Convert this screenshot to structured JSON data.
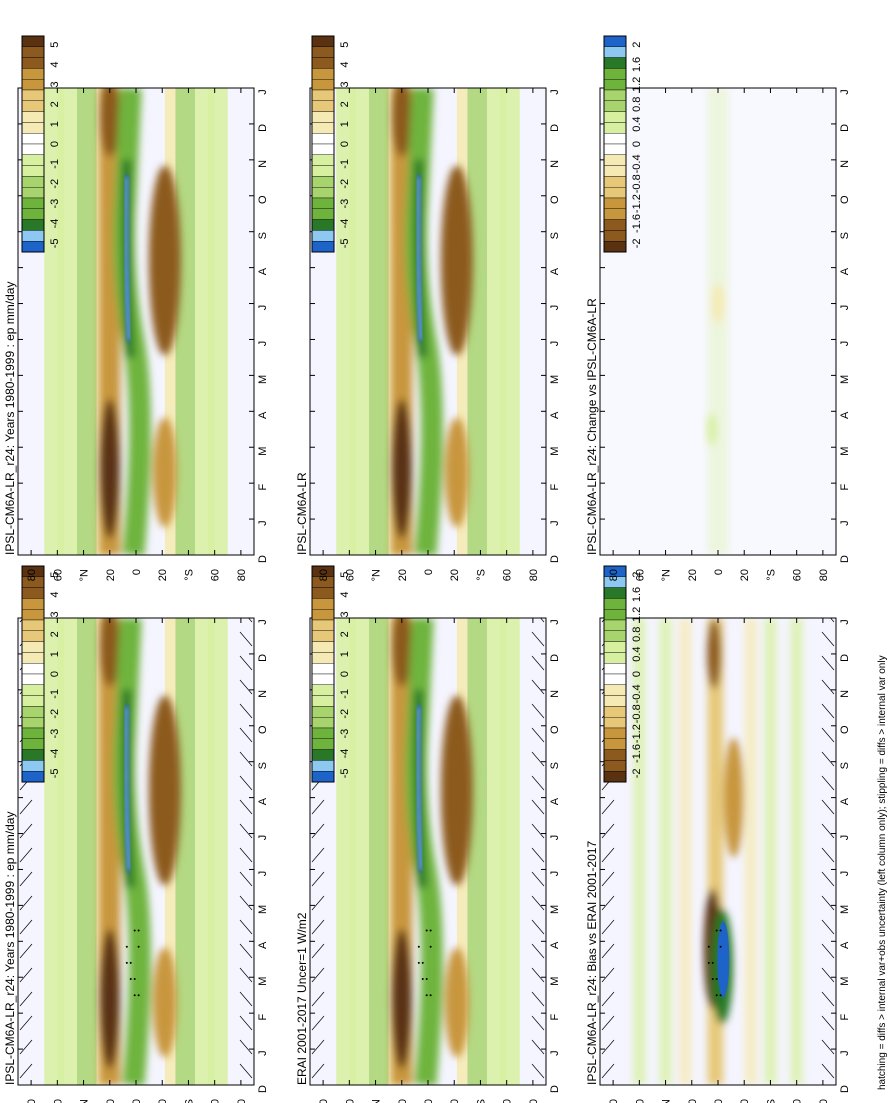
{
  "chart_data": [
    {
      "type": "heatmap",
      "title": "IPSL-CM6A-LR_r24: Years 1980-1999 : ep mm/day",
      "x_ticks": [
        "D",
        "J",
        "F",
        "M",
        "A",
        "M",
        "J",
        "J",
        "A",
        "S",
        "O",
        "N",
        "D",
        "J"
      ],
      "y_ticks": [
        "80",
        "60",
        "°N",
        "20",
        "0",
        "20",
        "°S",
        "60",
        "80"
      ],
      "colorbar": {
        "levels": [
          "5",
          "4",
          "3",
          "2",
          "1",
          "0",
          "-1",
          "-2",
          "-3",
          "-4",
          "-5"
        ],
        "range": [
          -5,
          5
        ]
      },
      "hatching": true,
      "stippling": true,
      "field": "full"
    },
    {
      "type": "heatmap",
      "title": "IPSL-CM6A-LR_r24: Years 1980-1999 : ep mm/day",
      "x_ticks": [
        "D",
        "J",
        "F",
        "M",
        "A",
        "M",
        "J",
        "J",
        "A",
        "S",
        "O",
        "N",
        "D",
        "J"
      ],
      "y_ticks": [
        "80",
        "60",
        "°N",
        "20",
        "0",
        "20",
        "°S",
        "60",
        "80"
      ],
      "colorbar": {
        "levels": [
          "5",
          "4",
          "3",
          "2",
          "1",
          "0",
          "-1",
          "-2",
          "-3",
          "-4",
          "-5"
        ],
        "range": [
          -5,
          5
        ]
      },
      "hatching": false,
      "stippling": false,
      "field": "full"
    },
    {
      "type": "heatmap",
      "title": "ERAI 2001-2017 Uncer=1 W/m2",
      "x_ticks": [
        "D",
        "J",
        "F",
        "M",
        "A",
        "M",
        "J",
        "J",
        "A",
        "S",
        "O",
        "N",
        "D",
        "J"
      ],
      "y_ticks": [
        "80",
        "60",
        "°N",
        "20",
        "0",
        "20",
        "°S",
        "60",
        "80"
      ],
      "colorbar": {
        "levels": [
          "5",
          "4",
          "3",
          "2",
          "1",
          "0",
          "-1",
          "-2",
          "-3",
          "-4",
          "-5"
        ],
        "range": [
          -5,
          5
        ]
      },
      "hatching": true,
      "stippling": true,
      "field": "full"
    },
    {
      "type": "heatmap",
      "title": "IPSL-CM6A-LR",
      "x_ticks": [
        "D",
        "J",
        "F",
        "M",
        "A",
        "M",
        "J",
        "J",
        "A",
        "S",
        "O",
        "N",
        "D",
        "J"
      ],
      "y_ticks": [
        "80",
        "60",
        "°N",
        "20",
        "0",
        "20",
        "°S",
        "60",
        "80"
      ],
      "colorbar": {
        "levels": [
          "5",
          "4",
          "3",
          "2",
          "1",
          "0",
          "-1",
          "-2",
          "-3",
          "-4",
          "-5"
        ],
        "range": [
          -5,
          5
        ]
      },
      "hatching": false,
      "stippling": false,
      "field": "full"
    },
    {
      "type": "heatmap",
      "title": "IPSL-CM6A-LR_r24: Bias vs ERAI 2001-2017",
      "x_ticks": [
        "D",
        "J",
        "F",
        "M",
        "A",
        "M",
        "J",
        "J",
        "A",
        "S",
        "O",
        "N",
        "D",
        "J"
      ],
      "y_ticks": [
        "80",
        "60",
        "°N",
        "20",
        "0",
        "20",
        "°S",
        "60",
        "80"
      ],
      "colorbar": {
        "levels": [
          "2",
          "1.6",
          "1.2",
          "0.8",
          "0.4",
          "0",
          "-0.4",
          "-0.8",
          "-1.2",
          "-1.6",
          "-2"
        ],
        "range": [
          -2,
          2
        ]
      },
      "hatching": true,
      "stippling": true,
      "field": "bias"
    },
    {
      "type": "heatmap",
      "title": "IPSL-CM6A-LR_r24: Change vs IPSL-CM6A-LR",
      "x_ticks": [
        "D",
        "J",
        "F",
        "M",
        "A",
        "M",
        "J",
        "J",
        "A",
        "S",
        "O",
        "N",
        "D",
        "J"
      ],
      "y_ticks": [
        "80",
        "60",
        "°N",
        "20",
        "0",
        "20",
        "°S",
        "60",
        "80"
      ],
      "colorbar": {
        "levels": [
          "2",
          "1.6",
          "1.2",
          "0.8",
          "0.4",
          "0",
          "-0.4",
          "-0.8",
          "-1.2",
          "-1.6",
          "-2"
        ],
        "range": [
          -2,
          2
        ]
      },
      "hatching": false,
      "stippling": false,
      "field": "change"
    }
  ],
  "footnote": "hatching = diffs > internal var+obs uncertainty (left column only); stippling = diffs > internal var only",
  "palette": {
    "brown_dark": "#5a3212",
    "brown": "#8c5a1e",
    "tan": "#c8963c",
    "sand": "#e6c878",
    "cream": "#f5eab4",
    "white": "#ffffff",
    "light_green": "#d7f0a0",
    "green": "#a8d46e",
    "mid_green": "#6eb43c",
    "dark_green": "#287828",
    "light_blue": "#8cc8f0",
    "blue": "#1e64c8"
  }
}
